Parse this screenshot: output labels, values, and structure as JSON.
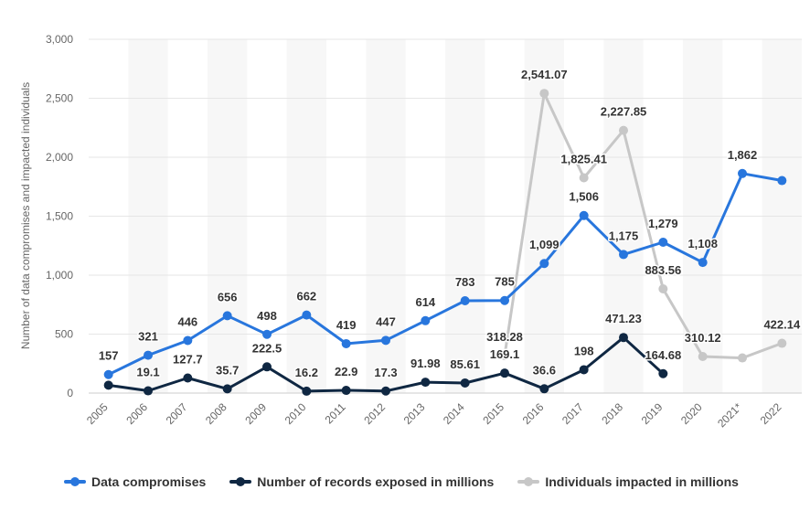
{
  "chart_data": {
    "type": "line",
    "title": "",
    "xlabel": "",
    "ylabel": "Number of data compromises and impacted individuals",
    "ylim": [
      0,
      3000
    ],
    "yticks": [
      0,
      500,
      1000,
      1500,
      2000,
      2500,
      3000
    ],
    "ytick_labels": [
      "0",
      "500",
      "1,000",
      "1,500",
      "2,000",
      "2,500",
      "3,000"
    ],
    "categories": [
      "2005",
      "2006",
      "2007",
      "2008",
      "2009",
      "2010",
      "2011",
      "2012",
      "2013",
      "2014",
      "2015",
      "2016",
      "2017",
      "2018",
      "2019",
      "2020",
      "2021*",
      "2022"
    ],
    "series": [
      {
        "name": "Data compromises",
        "color": "#2876dd",
        "values": [
          157,
          321,
          446,
          656,
          498,
          662,
          419,
          447,
          614,
          783,
          785,
          1099,
          1506,
          1175,
          1279,
          1108,
          1862,
          1802
        ],
        "labels": [
          "157",
          "321",
          "446",
          "656",
          "498",
          "662",
          "419",
          "447",
          "614",
          "783",
          "785",
          "1,099",
          "1,506",
          "1,175",
          "1,279",
          "1,108",
          "1,862",
          ""
        ]
      },
      {
        "name": "Number of records exposed in millions",
        "color": "#0f2742",
        "values": [
          66.9,
          19.1,
          127.7,
          35.7,
          222.5,
          16.2,
          22.9,
          17.3,
          91.98,
          85.61,
          169.1,
          36.6,
          198,
          471.23,
          164.68,
          null,
          null,
          null
        ],
        "labels": [
          "",
          "19.1",
          "127.7",
          "35.7",
          "222.5",
          "16.2",
          "22.9",
          "17.3",
          "91.98",
          "85.61",
          "169.1",
          "36.6",
          "198",
          "471.23",
          "164.68",
          "",
          "",
          ""
        ]
      },
      {
        "name": "Individuals impacted in millions",
        "color": "#c7c7c7",
        "values": [
          null,
          null,
          null,
          null,
          null,
          null,
          null,
          null,
          null,
          null,
          318.28,
          2541.07,
          1825.41,
          2227.85,
          883.56,
          310.12,
          298,
          422.14
        ],
        "labels": [
          "",
          "",
          "",
          "",
          "",
          "",
          "",
          "",
          "",
          "",
          "318.28",
          "2,541.07",
          "1,825.41",
          "2,227.85",
          "883.56",
          "310.12",
          "",
          "422.14"
        ]
      }
    ],
    "legend_position": "bottom",
    "grid": true
  }
}
